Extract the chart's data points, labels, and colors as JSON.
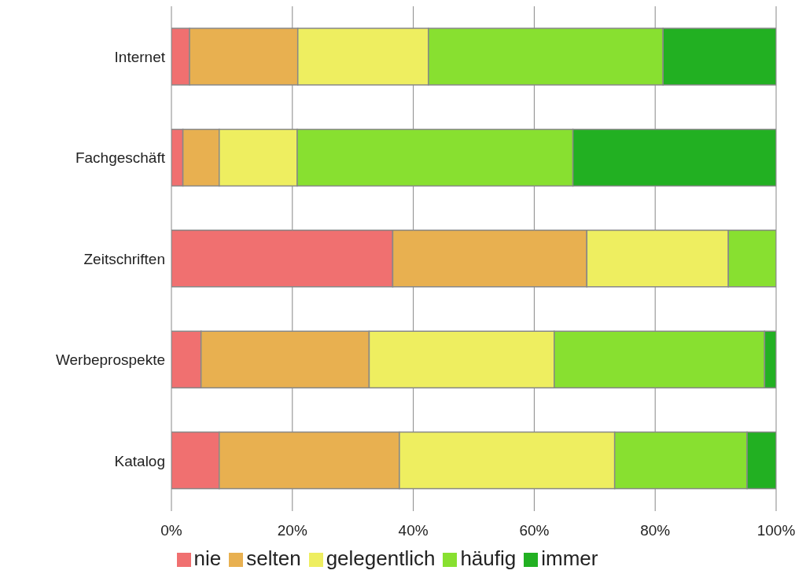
{
  "chart_data": {
    "type": "bar",
    "orientation": "horizontal",
    "stacked": true,
    "categories": [
      "Internet",
      "Fachgeschäft",
      "Zeitschriften",
      "Werbeprospekte",
      "Katalog"
    ],
    "series": [
      {
        "name": "nie",
        "color": "#f07070",
        "values": [
          3.0,
          1.9,
          36.6,
          4.9,
          7.9
        ]
      },
      {
        "name": "selten",
        "color": "#e8b050",
        "values": [
          17.9,
          6.0,
          32.1,
          27.8,
          29.8
        ]
      },
      {
        "name": "gelegentlich",
        "color": "#eeee60",
        "values": [
          21.6,
          12.9,
          23.4,
          30.6,
          35.6
        ]
      },
      {
        "name": "häufig",
        "color": "#88e030",
        "values": [
          38.8,
          45.6,
          7.9,
          34.8,
          21.9
        ]
      },
      {
        "name": "immer",
        "color": "#22b022",
        "values": [
          18.7,
          33.6,
          0,
          1.9,
          4.8
        ]
      }
    ],
    "xlim": [
      0,
      100
    ],
    "xticks": [
      {
        "value": 0,
        "label": "0%"
      },
      {
        "value": 20,
        "label": "20%"
      },
      {
        "value": 40,
        "label": "40%"
      },
      {
        "value": 60,
        "label": "60%"
      },
      {
        "value": 80,
        "label": "80%"
      },
      {
        "value": 100,
        "label": "100%"
      }
    ],
    "grid": "x",
    "legend": "bottom"
  }
}
